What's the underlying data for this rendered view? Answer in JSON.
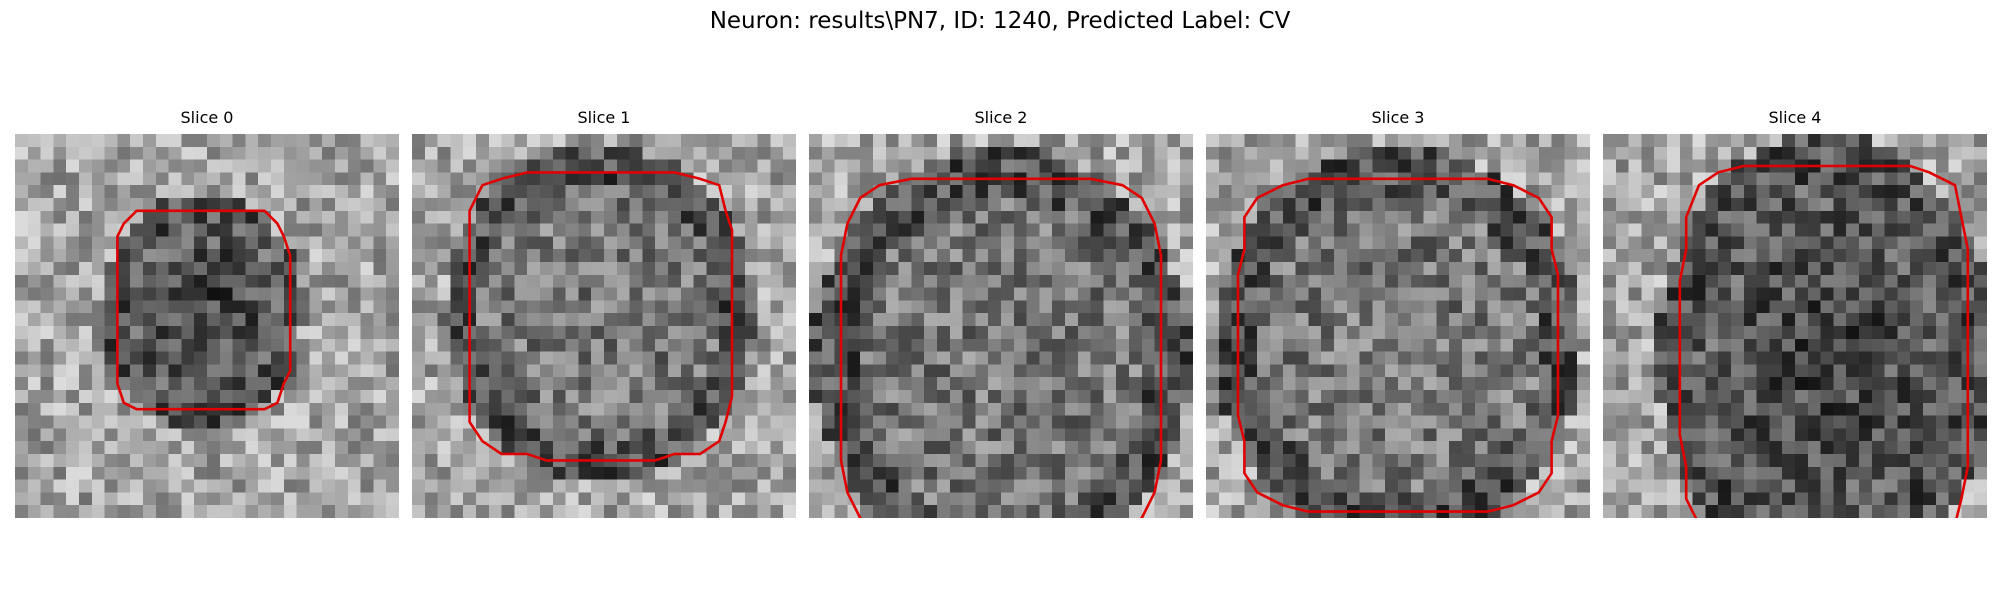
{
  "figure": {
    "title": "Neuron: results\\PN7, ID: 1240, Predicted Label: CV"
  },
  "contour_color": "#e00000",
  "slices": [
    {
      "title": "Slice 0",
      "center": [
        0.49,
        0.46
      ],
      "radius": [
        0.24,
        0.28
      ],
      "dark_center": true
    },
    {
      "title": "Slice 1",
      "center": [
        0.49,
        0.47
      ],
      "radius": [
        0.37,
        0.4
      ],
      "dark_center": false
    },
    {
      "title": "Slice 2",
      "center": [
        0.5,
        0.58
      ],
      "radius": [
        0.45,
        0.5
      ],
      "dark_center": false
    },
    {
      "title": "Slice 3",
      "center": [
        0.5,
        0.55
      ],
      "radius": [
        0.44,
        0.47
      ],
      "dark_center": false
    },
    {
      "title": "Slice 4",
      "center": [
        0.58,
        0.58
      ],
      "radius": [
        0.4,
        0.53
      ],
      "dark_center": true
    }
  ]
}
